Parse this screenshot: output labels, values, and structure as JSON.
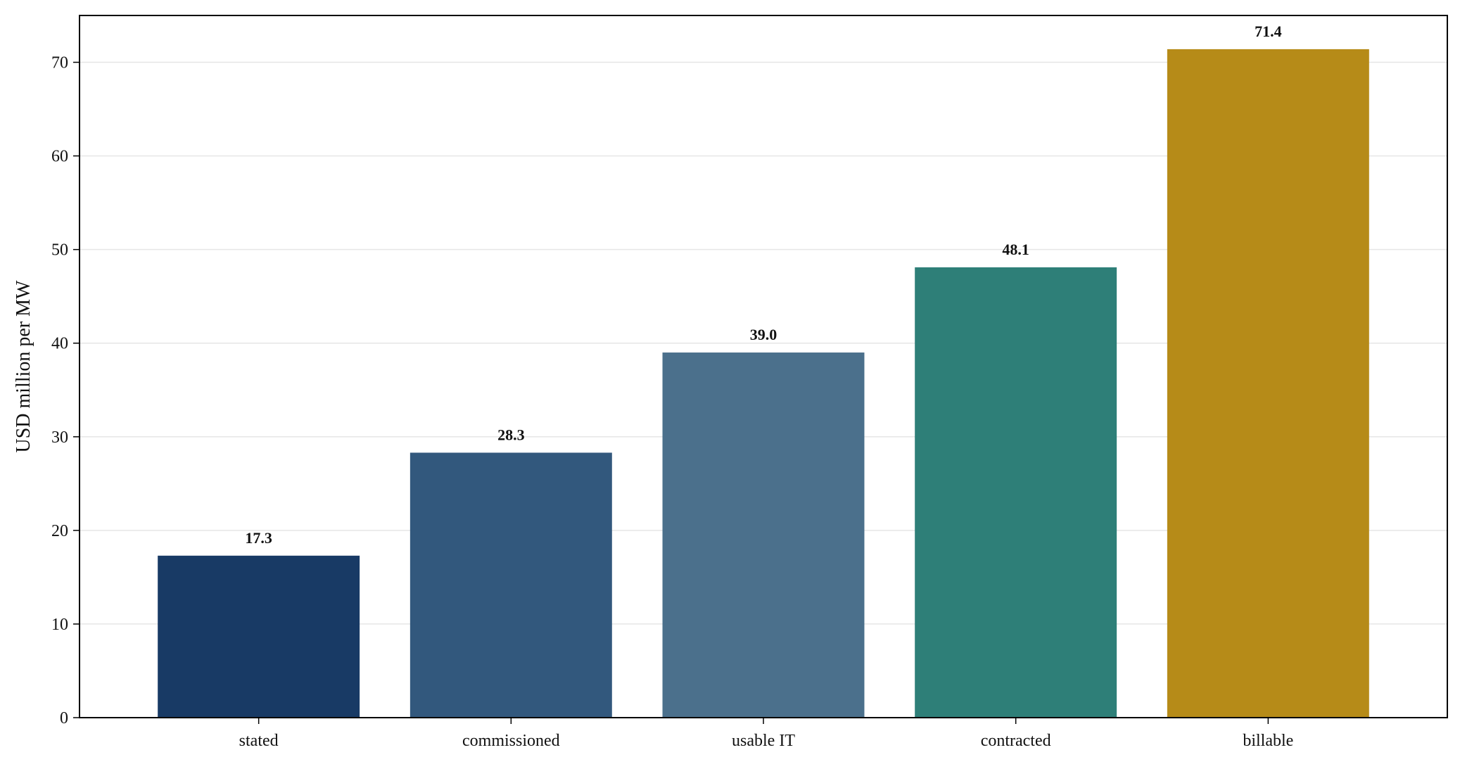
{
  "chart_data": {
    "type": "bar",
    "title": "",
    "xlabel": "",
    "ylabel": "USD million per MW",
    "categories": [
      "stated",
      "commissioned",
      "usable IT",
      "contracted",
      "billable"
    ],
    "values": [
      17.3,
      28.3,
      39.0,
      48.1,
      71.4
    ],
    "value_labels": [
      "17.3",
      "28.3",
      "39.0",
      "48.1",
      "71.4"
    ],
    "colors": [
      "#183a65",
      "#32587d",
      "#4b708c",
      "#2e7f78",
      "#b68b18"
    ],
    "ylim": [
      0,
      75
    ],
    "yticks": [
      0,
      10,
      20,
      30,
      40,
      50,
      60,
      70
    ],
    "grid": "horizontal",
    "legend": "none"
  }
}
